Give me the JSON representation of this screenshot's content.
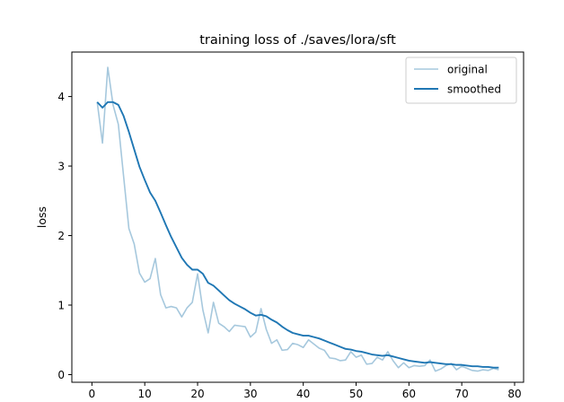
{
  "chart_data": {
    "type": "line",
    "title": "training loss of ./saves/lora/sft",
    "xlabel": "",
    "ylabel": "loss",
    "xlim": [
      -3.8,
      81.7
    ],
    "ylim": [
      -0.11,
      4.64
    ],
    "xticks": [
      0,
      10,
      20,
      30,
      40,
      50,
      60,
      70,
      80
    ],
    "yticks": [
      0,
      1,
      2,
      3,
      4
    ],
    "grid": false,
    "legend": "top-right",
    "series": [
      {
        "name": "original",
        "color": "#a6c8dd",
        "x": [
          1,
          2,
          3,
          4,
          5,
          6,
          7,
          8,
          9,
          10,
          11,
          12,
          13,
          14,
          15,
          16,
          17,
          18,
          19,
          20,
          21,
          22,
          23,
          24,
          25,
          26,
          27,
          28,
          29,
          30,
          31,
          32,
          33,
          34,
          35,
          36,
          37,
          38,
          39,
          40,
          41,
          42,
          43,
          44,
          45,
          46,
          47,
          48,
          49,
          50,
          51,
          52,
          53,
          54,
          55,
          56,
          57,
          58,
          59,
          60,
          61,
          62,
          63,
          64,
          65,
          66,
          67,
          68,
          69,
          70,
          71,
          72,
          73,
          74,
          75,
          76,
          77
        ],
        "y": [
          3.92,
          3.33,
          4.42,
          3.88,
          3.6,
          2.85,
          2.1,
          1.88,
          1.46,
          1.33,
          1.38,
          1.67,
          1.15,
          0.96,
          0.98,
          0.96,
          0.83,
          0.96,
          1.04,
          1.45,
          0.93,
          0.6,
          1.04,
          0.74,
          0.69,
          0.62,
          0.71,
          0.7,
          0.69,
          0.54,
          0.61,
          0.95,
          0.65,
          0.45,
          0.5,
          0.35,
          0.36,
          0.45,
          0.43,
          0.39,
          0.5,
          0.44,
          0.38,
          0.35,
          0.24,
          0.23,
          0.2,
          0.21,
          0.33,
          0.25,
          0.28,
          0.15,
          0.16,
          0.25,
          0.21,
          0.33,
          0.2,
          0.1,
          0.17,
          0.1,
          0.13,
          0.12,
          0.13,
          0.21,
          0.05,
          0.08,
          0.13,
          0.16,
          0.07,
          0.12,
          0.09,
          0.06,
          0.05,
          0.07,
          0.06,
          0.09,
          0.07
        ]
      },
      {
        "name": "smoothed",
        "color": "#1f77b4",
        "x": [
          1,
          2,
          3,
          4,
          5,
          6,
          7,
          8,
          9,
          10,
          11,
          12,
          13,
          14,
          15,
          16,
          17,
          18,
          19,
          20,
          21,
          22,
          23,
          24,
          25,
          26,
          27,
          28,
          29,
          30,
          31,
          32,
          33,
          34,
          35,
          36,
          37,
          38,
          39,
          40,
          41,
          42,
          43,
          44,
          45,
          46,
          47,
          48,
          49,
          50,
          51,
          52,
          53,
          54,
          55,
          56,
          57,
          58,
          59,
          60,
          61,
          62,
          63,
          64,
          65,
          66,
          67,
          68,
          69,
          70,
          71,
          72,
          73,
          74,
          75,
          76,
          77
        ],
        "y": [
          3.92,
          3.84,
          3.92,
          3.92,
          3.88,
          3.72,
          3.49,
          3.24,
          2.99,
          2.8,
          2.62,
          2.5,
          2.33,
          2.15,
          1.98,
          1.83,
          1.68,
          1.58,
          1.51,
          1.51,
          1.45,
          1.32,
          1.28,
          1.21,
          1.14,
          1.07,
          1.02,
          0.98,
          0.94,
          0.89,
          0.85,
          0.86,
          0.84,
          0.79,
          0.75,
          0.69,
          0.64,
          0.6,
          0.58,
          0.56,
          0.56,
          0.54,
          0.52,
          0.49,
          0.46,
          0.43,
          0.4,
          0.37,
          0.36,
          0.34,
          0.33,
          0.31,
          0.29,
          0.28,
          0.27,
          0.28,
          0.26,
          0.24,
          0.22,
          0.2,
          0.19,
          0.18,
          0.17,
          0.18,
          0.17,
          0.16,
          0.15,
          0.15,
          0.14,
          0.14,
          0.13,
          0.12,
          0.12,
          0.11,
          0.11,
          0.1,
          0.1
        ]
      }
    ]
  }
}
